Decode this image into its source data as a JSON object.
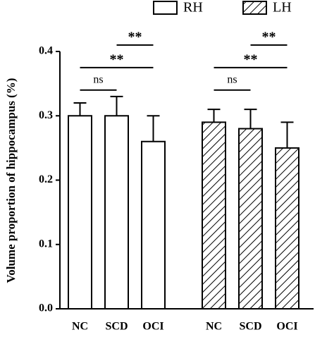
{
  "chart_data": {
    "type": "bar",
    "ylabel": "Volume proportion of hippocampus (%)",
    "categories": [
      "NC",
      "SCD",
      "OCI"
    ],
    "series": [
      {
        "name": "RH",
        "color": "#ffffff",
        "hatch": false,
        "values": [
          0.3,
          0.3,
          0.26
        ],
        "errors": [
          0.02,
          0.03,
          0.04
        ]
      },
      {
        "name": "LH",
        "color": "#ffffff",
        "hatch": true,
        "values": [
          0.29,
          0.28,
          0.25
        ],
        "errors": [
          0.02,
          0.03,
          0.04
        ]
      }
    ],
    "ylim": [
      0,
      0.4
    ],
    "yticks": [
      {
        "value": 0,
        "label": "0.0"
      },
      0.1,
      0.2,
      0.3,
      0.4
    ],
    "annotations": [
      {
        "text": "ns",
        "from": "NC",
        "to": "SCD"
      },
      {
        "text": "**",
        "from": "NC",
        "to": "OCI"
      },
      {
        "text": "**",
        "from": "SCD",
        "to": "OCI"
      }
    ],
    "legend": "top"
  }
}
